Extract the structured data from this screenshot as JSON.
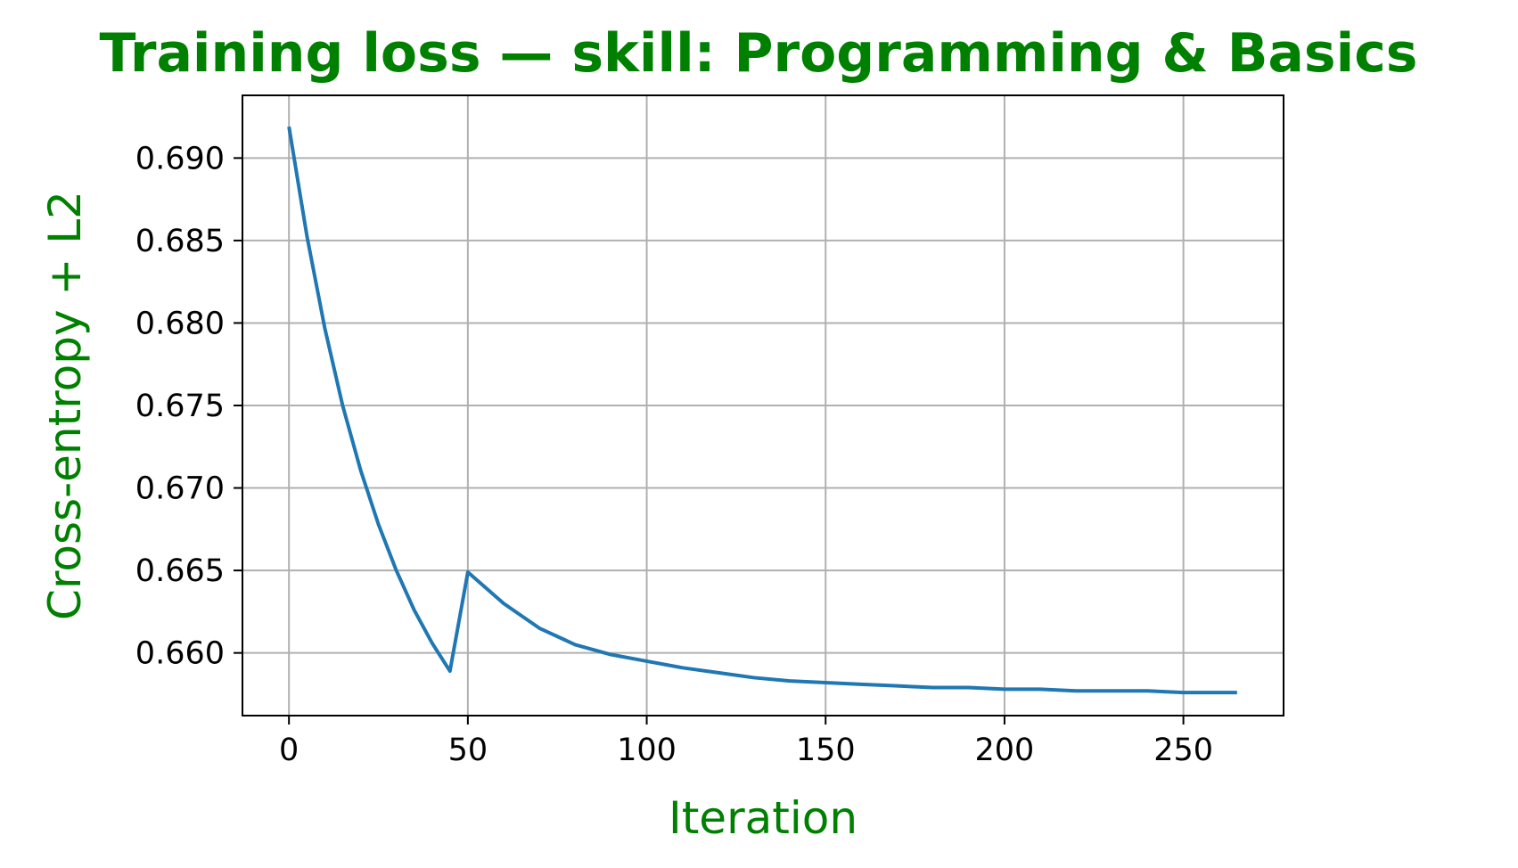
{
  "chart_data": {
    "type": "line",
    "title": "Training loss — skill: Programming & Basics",
    "xlabel": "Iteration",
    "ylabel": "Cross-entropy + L2",
    "xlim": [
      -13,
      278
    ],
    "ylim": [
      0.6562,
      0.6938
    ],
    "xticks": [
      0,
      50,
      100,
      150,
      200,
      250
    ],
    "yticks": [
      0.66,
      0.665,
      0.67,
      0.675,
      0.68,
      0.685,
      0.69
    ],
    "xtick_labels": [
      "0",
      "50",
      "100",
      "150",
      "200",
      "250"
    ],
    "ytick_labels": [
      "0.660",
      "0.665",
      "0.670",
      "0.675",
      "0.680",
      "0.685",
      "0.690"
    ],
    "grid": true,
    "legend": "none",
    "series": [
      {
        "x": [
          0,
          5,
          10,
          15,
          20,
          25,
          30,
          35,
          40,
          45,
          50,
          60,
          70,
          80,
          90,
          100,
          110,
          120,
          130,
          140,
          150,
          160,
          170,
          180,
          190,
          200,
          210,
          220,
          230,
          240,
          250,
          260,
          265
        ],
        "values": [
          0.6919,
          0.6853,
          0.6797,
          0.675,
          0.6711,
          0.6678,
          0.665,
          0.6626,
          0.6606,
          0.6589,
          0.6649,
          0.663,
          0.6615,
          0.6605,
          0.6599,
          0.6595,
          0.6591,
          0.6588,
          0.6585,
          0.6583,
          0.6582,
          0.6581,
          0.658,
          0.6579,
          0.6579,
          0.6578,
          0.6578,
          0.6577,
          0.6577,
          0.6577,
          0.6576,
          0.6576,
          0.6576
        ]
      }
    ],
    "colors": {
      "line": "#1f77b4",
      "title": "#008000",
      "axis_label": "#008000",
      "grid": "#b0b0b0",
      "axes": "#000000"
    }
  }
}
